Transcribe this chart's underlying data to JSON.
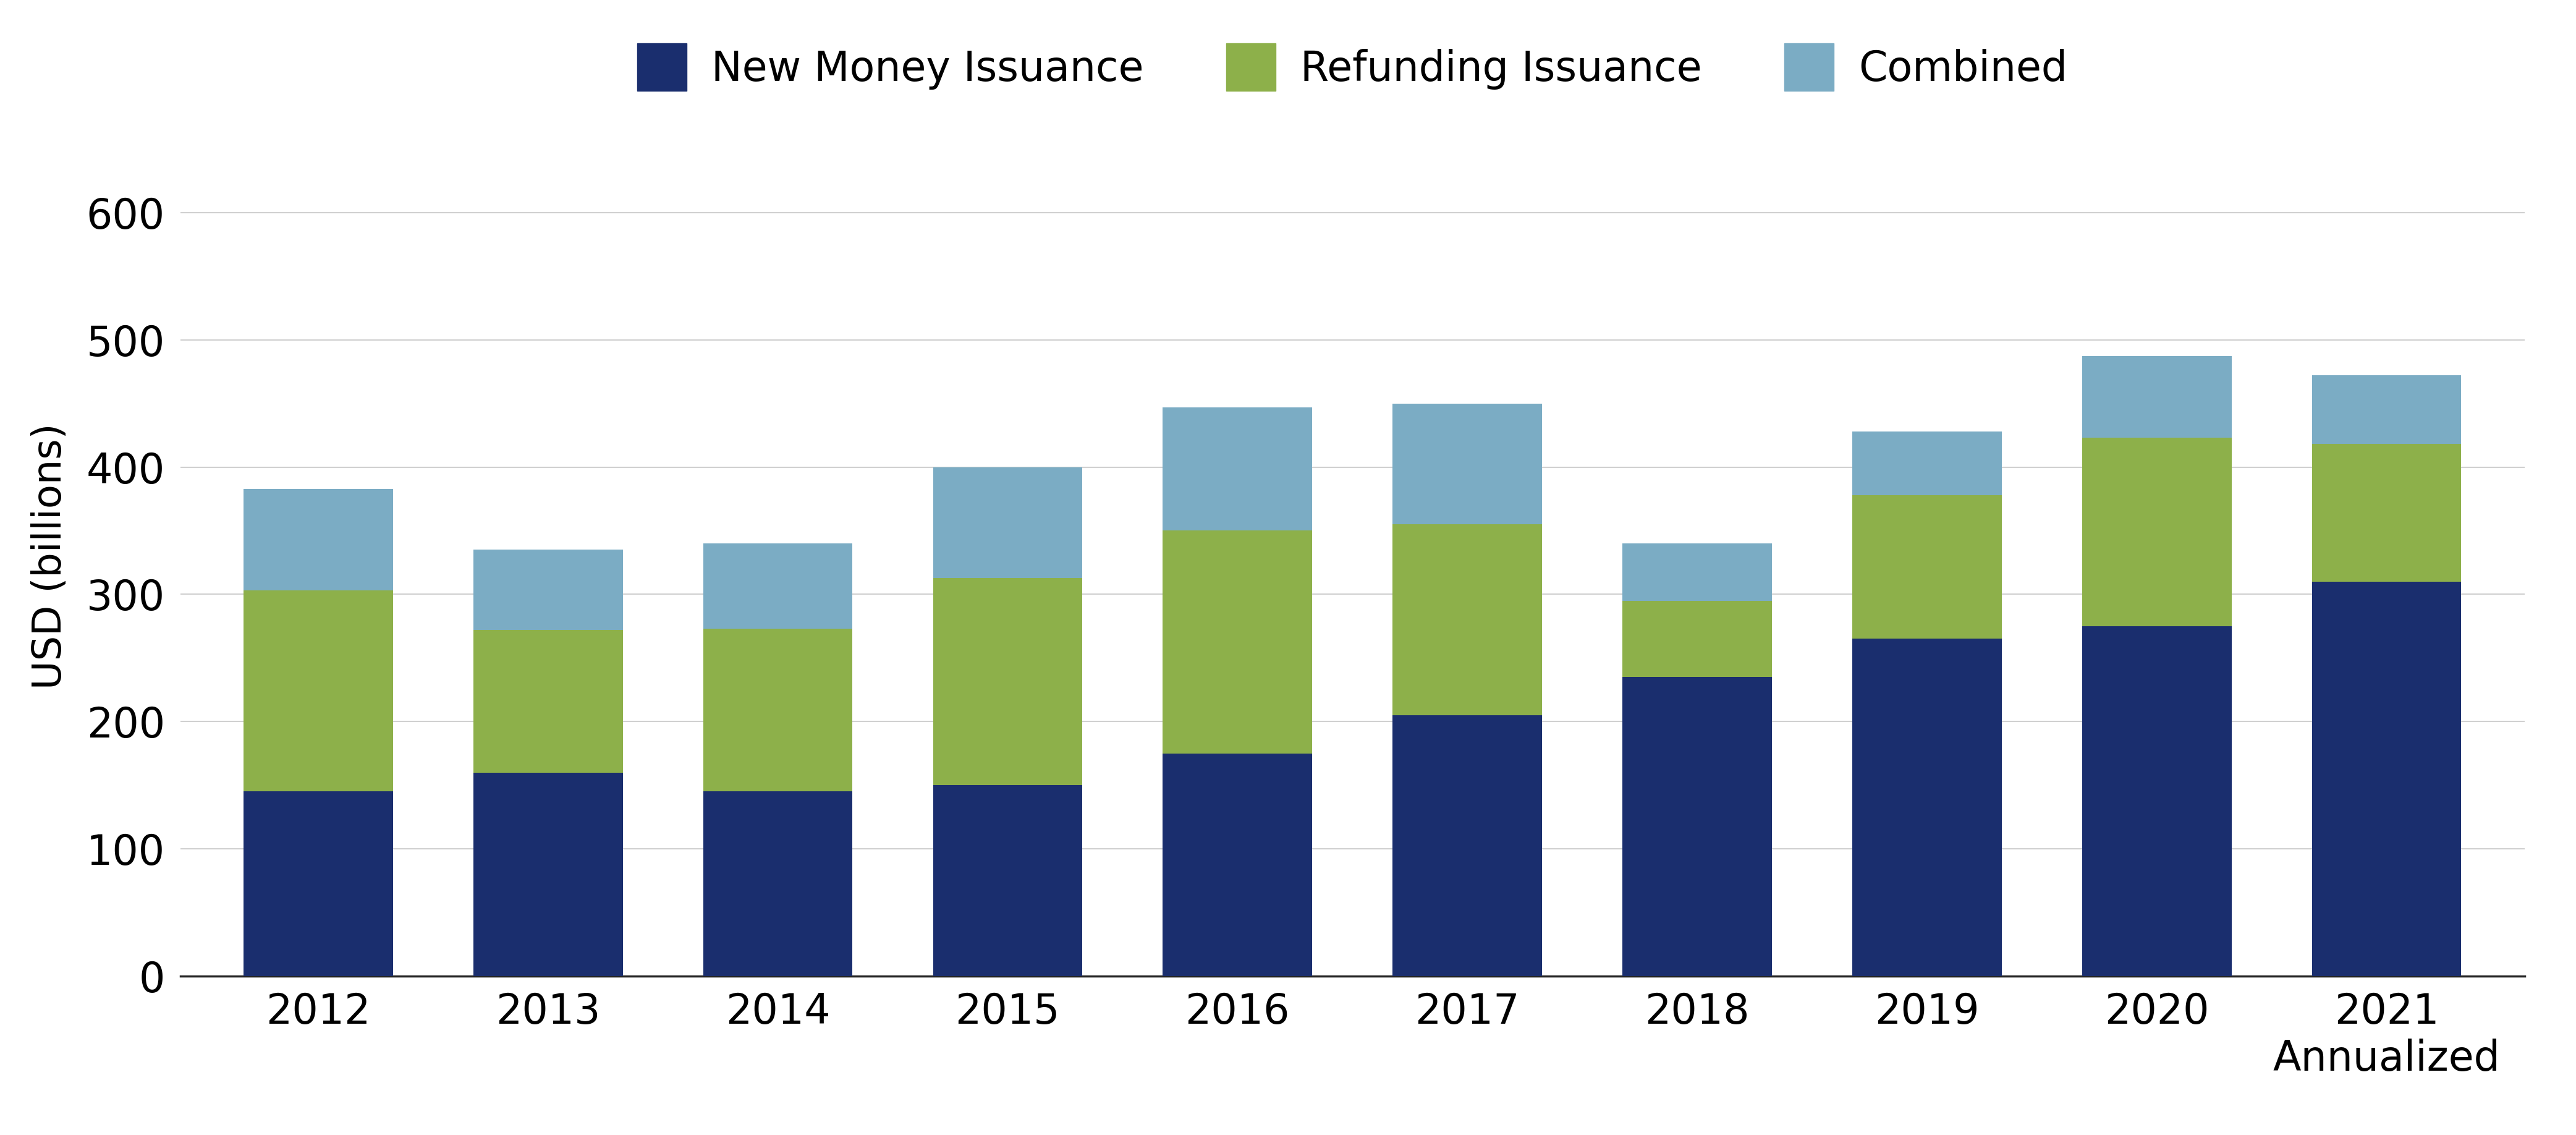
{
  "years": [
    "2012",
    "2013",
    "2014",
    "2015",
    "2016",
    "2017",
    "2018",
    "2019",
    "2020",
    "2021"
  ],
  "new_money": [
    145,
    160,
    145,
    150,
    175,
    205,
    235,
    265,
    275,
    310
  ],
  "refunding": [
    158,
    112,
    128,
    163,
    175,
    150,
    60,
    113,
    148,
    108
  ],
  "combined": [
    80,
    63,
    67,
    87,
    97,
    95,
    45,
    50,
    64,
    54
  ],
  "color_new_money": "#1a2e6e",
  "color_refunding": "#8db04a",
  "color_combined": "#7bacc4",
  "ylabel": "USD (billions)",
  "ylim": [
    0,
    660
  ],
  "yticks": [
    0,
    100,
    200,
    300,
    400,
    500,
    600
  ],
  "legend_labels": [
    "New Money Issuance",
    "Refunding Issuance",
    "Combined"
  ],
  "background_color": "#ffffff",
  "grid_color": "#d0d0d0",
  "bar_width": 0.65,
  "label_fontsize": 46,
  "tick_fontsize": 48,
  "legend_fontsize": 48
}
